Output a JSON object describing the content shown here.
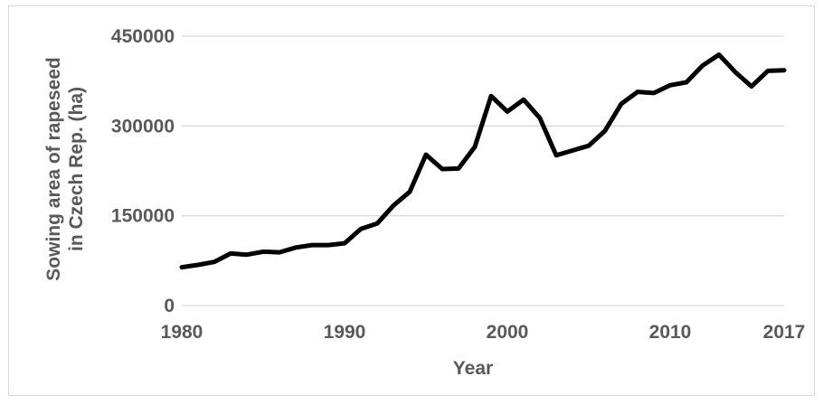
{
  "chart_data": {
    "type": "line",
    "title": "",
    "xlabel": "Year",
    "ylabel_lines": [
      "Sowing area of rapeseed",
      "in Czech Rep. (ha)"
    ],
    "xlim": [
      1980,
      2017
    ],
    "ylim": [
      0,
      450000
    ],
    "x_ticks": [
      {
        "value": 1980,
        "label": "1980"
      },
      {
        "value": 1990,
        "label": "1990"
      },
      {
        "value": 2000,
        "label": "2000"
      },
      {
        "value": 2010,
        "label": "2010"
      },
      {
        "value": 2017,
        "label": "2017"
      }
    ],
    "y_ticks": [
      {
        "value": 0,
        "label": "0"
      },
      {
        "value": 150000,
        "label": "150000"
      },
      {
        "value": 300000,
        "label": "300000"
      },
      {
        "value": 450000,
        "label": "450000"
      }
    ],
    "grid": "horizontal",
    "legend": "none",
    "line_color": "#000000",
    "gridline_color": "#d9d9d9",
    "text_color": "#595959",
    "series": [
      {
        "x": [
          1980,
          1981,
          1982,
          1983,
          1984,
          1985,
          1986,
          1987,
          1988,
          1989,
          1990,
          1991,
          1992,
          1993,
          1994,
          1995,
          1996,
          1997,
          1998,
          1999,
          2000,
          2001,
          2002,
          2003,
          2004,
          2005,
          2006,
          2007,
          2008,
          2009,
          2010,
          2011,
          2012,
          2013,
          2014,
          2015,
          2016,
          2017
        ],
        "values": [
          64000,
          68000,
          73000,
          87000,
          85000,
          90000,
          89000,
          97000,
          101000,
          101000,
          104000,
          128000,
          137000,
          167000,
          190000,
          252000,
          228000,
          229000,
          265000,
          350000,
          324000,
          344000,
          313000,
          251000,
          259000,
          267000,
          292000,
          337000,
          357000,
          355000,
          368000,
          373000,
          401000,
          419000,
          390000,
          366000,
          392000,
          393000
        ]
      }
    ]
  }
}
